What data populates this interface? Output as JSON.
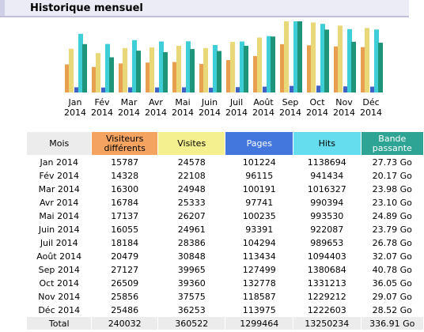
{
  "section": {
    "title": "Historique mensuel"
  },
  "colors": {
    "visitors": "#E8A050",
    "visits": "#E8D878",
    "pages": "#3F62C4",
    "hits": "#3FCDD8",
    "bandwidth": "#1E9478",
    "header_bg": "#ECECF6"
  },
  "months": [
    {
      "label": "Jan",
      "year": "2014"
    },
    {
      "label": "Fév",
      "year": "2014"
    },
    {
      "label": "Mar",
      "year": "2014"
    },
    {
      "label": "Avr",
      "year": "2014"
    },
    {
      "label": "Mai",
      "year": "2014"
    },
    {
      "label": "Juin",
      "year": "2014"
    },
    {
      "label": "Juil",
      "year": "2014"
    },
    {
      "label": "Août",
      "year": "2014"
    },
    {
      "label": "Sep",
      "year": "2014"
    },
    {
      "label": "Oct",
      "year": "2014"
    },
    {
      "label": "Nov",
      "year": "2014"
    },
    {
      "label": "Déc",
      "year": "2014"
    }
  ],
  "table": {
    "headers": {
      "month": "Mois",
      "visitors": "Visiteurs différents",
      "visits": "Visites",
      "pages": "Pages",
      "hits": "Hits",
      "bandwidth": "Bande passante"
    },
    "rows": [
      {
        "month": "Jan 2014",
        "visitors": "15787",
        "visits": "24578",
        "pages": "101224",
        "hits": "1138694",
        "bandwidth": "27.73 Go"
      },
      {
        "month": "Fév 2014",
        "visitors": "14328",
        "visits": "22108",
        "pages": "96115",
        "hits": "941434",
        "bandwidth": "20.17 Go"
      },
      {
        "month": "Mar 2014",
        "visitors": "16300",
        "visits": "24948",
        "pages": "100191",
        "hits": "1016327",
        "bandwidth": "23.98 Go"
      },
      {
        "month": "Avr 2014",
        "visitors": "16784",
        "visits": "25333",
        "pages": "97741",
        "hits": "990394",
        "bandwidth": "23.10 Go"
      },
      {
        "month": "Mai 2014",
        "visitors": "17137",
        "visits": "26207",
        "pages": "100235",
        "hits": "993530",
        "bandwidth": "24.89 Go"
      },
      {
        "month": "Juin 2014",
        "visitors": "16055",
        "visits": "24961",
        "pages": "93391",
        "hits": "922087",
        "bandwidth": "23.79 Go"
      },
      {
        "month": "Juil 2014",
        "visitors": "18184",
        "visits": "28386",
        "pages": "104294",
        "hits": "989653",
        "bandwidth": "26.78 Go"
      },
      {
        "month": "Août 2014",
        "visitors": "20479",
        "visits": "30848",
        "pages": "113434",
        "hits": "1094403",
        "bandwidth": "32.07 Go"
      },
      {
        "month": "Sep 2014",
        "visitors": "27127",
        "visits": "39965",
        "pages": "127499",
        "hits": "1380684",
        "bandwidth": "40.78 Go"
      },
      {
        "month": "Oct 2014",
        "visitors": "26509",
        "visits": "39360",
        "pages": "132778",
        "hits": "1331213",
        "bandwidth": "36.05 Go"
      },
      {
        "month": "Nov 2014",
        "visitors": "25856",
        "visits": "37575",
        "pages": "118587",
        "hits": "1229212",
        "bandwidth": "29.07 Go"
      },
      {
        "month": "Déc 2014",
        "visitors": "25486",
        "visits": "36253",
        "pages": "113975",
        "hits": "1222603",
        "bandwidth": "28.52 Go"
      }
    ],
    "total": {
      "label": "Total",
      "visitors": "240032",
      "visits": "360522",
      "pages": "1299464",
      "hits": "13250234",
      "bandwidth": "336.91 Go"
    }
  },
  "chart_data": {
    "type": "bar",
    "categories": [
      "Jan 2014",
      "Fév 2014",
      "Mar 2014",
      "Avr 2014",
      "Mai 2014",
      "Juin 2014",
      "Juil 2014",
      "Août 2014",
      "Sep 2014",
      "Oct 2014",
      "Nov 2014",
      "Déc 2014"
    ],
    "series": [
      {
        "name": "Visiteurs différents",
        "values": [
          15787,
          14328,
          16300,
          16784,
          17137,
          16055,
          18184,
          20479,
          27127,
          26509,
          25856,
          25486
        ]
      },
      {
        "name": "Visites",
        "values": [
          24578,
          22108,
          24948,
          25333,
          26207,
          24961,
          28386,
          30848,
          39965,
          39360,
          37575,
          36253
        ]
      },
      {
        "name": "Pages",
        "values": [
          101224,
          96115,
          100191,
          97741,
          100235,
          93391,
          104294,
          113434,
          127499,
          132778,
          118587,
          113975
        ]
      },
      {
        "name": "Hits",
        "values": [
          1138694,
          941434,
          1016327,
          990394,
          993530,
          922087,
          989653,
          1094403,
          1380684,
          1331213,
          1229212,
          1222603
        ]
      },
      {
        "name": "Bande passante",
        "values": [
          27.73,
          20.17,
          23.98,
          23.1,
          24.89,
          23.79,
          26.78,
          32.07,
          40.78,
          36.05,
          29.07,
          28.52
        ]
      }
    ],
    "legend": "none"
  }
}
